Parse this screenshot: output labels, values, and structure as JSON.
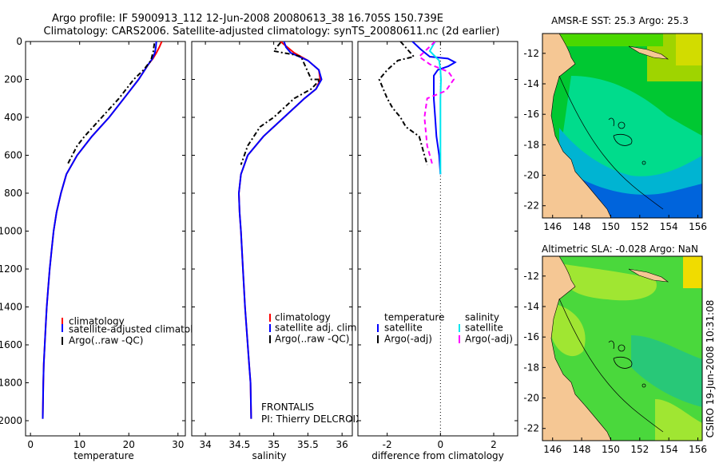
{
  "header": {
    "title_line1": "Argo profile: IF 5900913_112 12-Jun-2008 20080613_38 16.705S 150.739E",
    "title_line2": "Climatology: CARS2006. Satellite-adjusted climatology: synTS_20080611.nc (2d earlier)"
  },
  "side_label": "CSIRO 19-Jun-2008 10:31:08",
  "float_info": {
    "program": "FRONTALIS",
    "pi": "PI: Thierry DELCROIX"
  },
  "colors": {
    "climatology": "#ff0000",
    "satellite": "#0000ff",
    "argo": "#000000",
    "salinity_satellite": "#00e5ee",
    "salinity_argo": "#ff00ff"
  },
  "chart_data": [
    {
      "id": "temperature",
      "type": "line",
      "xlabel": "temperature",
      "ylabel": "",
      "xlim": [
        -1,
        31.5
      ],
      "ylim": [
        2080,
        0
      ],
      "xticks": [
        0,
        10,
        20,
        30
      ],
      "yticks": [
        0,
        200,
        400,
        600,
        800,
        1000,
        1200,
        1400,
        1600,
        1800,
        2000
      ],
      "series": [
        {
          "name": "climatology",
          "color": "#ff0000",
          "dash": "",
          "x": [
            26.7,
            26.2,
            25.6,
            24.9,
            24.0,
            22.0,
            19.0,
            16.0,
            12.5,
            9.5,
            7.3,
            6.2,
            5.3,
            4.7,
            4.3,
            3.9,
            3.6,
            3.3,
            3.1,
            2.9,
            2.7,
            2.6,
            2.5
          ],
          "y": [
            0,
            30,
            60,
            90,
            120,
            200,
            300,
            400,
            500,
            600,
            700,
            800,
            900,
            1000,
            1100,
            1200,
            1300,
            1400,
            1500,
            1600,
            1700,
            1800,
            1990
          ]
        },
        {
          "name": "satellite-adjusted climatology",
          "color": "#0000ff",
          "dash": "",
          "x": [
            25.6,
            25.5,
            25.3,
            24.8,
            24.0,
            22.0,
            19.0,
            16.0,
            12.5,
            9.5,
            7.3,
            6.2,
            5.3,
            4.7,
            4.3,
            3.9,
            3.6,
            3.3,
            3.1,
            2.9,
            2.7,
            2.6,
            2.5
          ],
          "y": [
            0,
            30,
            60,
            90,
            120,
            200,
            300,
            400,
            500,
            600,
            700,
            800,
            900,
            1000,
            1100,
            1200,
            1300,
            1400,
            1500,
            1600,
            1700,
            1800,
            1990
          ]
        },
        {
          "name": "Argo(..raw -QC)",
          "color": "#000000",
          "dash": "6,3,2,3",
          "x": [
            25.2,
            25.0,
            24.5,
            23.0,
            21.0,
            18.0,
            14.5,
            11.0,
            9.5,
            8.5,
            7.5
          ],
          "y": [
            10,
            50,
            100,
            150,
            200,
            300,
            400,
            500,
            550,
            600,
            650
          ]
        }
      ],
      "legend": [
        "climatology",
        "satellite-adjusted climatology",
        "Argo(..raw -QC)"
      ]
    },
    {
      "id": "salinity",
      "type": "line",
      "xlabel": "salinity",
      "ylabel": "",
      "xlim": [
        33.8,
        36.15
      ],
      "ylim": [
        2080,
        0
      ],
      "xticks": [
        34,
        34.5,
        35,
        35.5,
        36
      ],
      "series": [
        {
          "name": "climatology",
          "color": "#ff0000",
          "dash": "",
          "x": [
            35.1,
            35.2,
            35.3,
            35.5,
            35.66,
            35.68,
            35.62,
            35.45,
            35.15,
            34.85,
            34.62,
            34.52,
            34.49,
            34.5,
            34.52,
            34.55,
            34.58,
            34.6,
            34.62,
            34.64,
            34.66,
            34.67
          ],
          "y": [
            0,
            30,
            60,
            100,
            150,
            200,
            250,
            300,
            400,
            500,
            600,
            700,
            800,
            900,
            1000,
            1200,
            1400,
            1500,
            1600,
            1700,
            1800,
            1990
          ]
        },
        {
          "name": "satellite adj. clim.",
          "color": "#0000ff",
          "dash": "",
          "x": [
            35.15,
            35.18,
            35.25,
            35.5,
            35.66,
            35.7,
            35.62,
            35.45,
            35.15,
            34.85,
            34.62,
            34.52,
            34.49,
            34.5,
            34.52,
            34.55,
            34.58,
            34.6,
            34.62,
            34.64,
            34.66,
            34.67
          ],
          "y": [
            0,
            30,
            60,
            100,
            150,
            200,
            250,
            300,
            400,
            500,
            600,
            700,
            800,
            900,
            1000,
            1200,
            1400,
            1500,
            1600,
            1700,
            1800,
            1990
          ]
        },
        {
          "name": "Argo(..raw -QC)",
          "color": "#000000",
          "dash": "6,3,2,3",
          "x": [
            35.1,
            35.0,
            35.15,
            35.3,
            35.4,
            35.45,
            35.55,
            35.68,
            35.55,
            35.3,
            35.0,
            34.8,
            34.62,
            34.52
          ],
          "y": [
            5,
            50,
            60,
            70,
            80,
            120,
            200,
            200,
            250,
            300,
            400,
            450,
            550,
            650
          ]
        }
      ],
      "legend": [
        "climatology",
        "satellite adj. clim.",
        "Argo(..raw -QC)"
      ]
    },
    {
      "id": "difference",
      "type": "line",
      "xlabel": "difference from climatology",
      "ylabel": "",
      "xlim": [
        -3.1,
        2.9
      ],
      "ylim": [
        2080,
        0
      ],
      "xticks": [
        -2,
        0,
        2
      ],
      "zero_line": 0,
      "series": [
        {
          "name": "temperature satellite",
          "color": "#0000ff",
          "dash": "",
          "x": [
            -1.05,
            -0.75,
            -0.4,
            0.28,
            0.55,
            0.3,
            -0.1,
            -0.25,
            -0.25,
            -0.2,
            -0.15,
            -0.05,
            0.0
          ],
          "y": [
            0,
            40,
            80,
            90,
            110,
            130,
            150,
            180,
            300,
            400,
            500,
            600,
            700
          ]
        },
        {
          "name": "temperature Argo(-adj)",
          "color": "#000000",
          "dash": "6,3,2,3",
          "x": [
            -1.5,
            -1.0,
            -1.6,
            -2.0,
            -2.3,
            -2.0,
            -1.8,
            -1.5,
            -1.3,
            -0.8,
            -0.6,
            -0.5
          ],
          "y": [
            0,
            80,
            100,
            150,
            200,
            300,
            350,
            400,
            450,
            500,
            600,
            650
          ]
        },
        {
          "name": "salinity satellite",
          "color": "#00e5ee",
          "dash": "",
          "x": [
            -0.2,
            -0.4,
            -0.05,
            0.0,
            0.02,
            0.0,
            0.0,
            0.0,
            0.0,
            0.0
          ],
          "y": [
            0,
            50,
            100,
            150,
            200,
            300,
            400,
            500,
            600,
            700
          ]
        },
        {
          "name": "salinity Argo(-adj)",
          "color": "#ff00ff",
          "dash": "6,4",
          "x": [
            -0.2,
            -0.8,
            -0.4,
            0.3,
            0.5,
            0.2,
            -0.5,
            -0.6,
            -0.5,
            -0.3
          ],
          "y": [
            0,
            80,
            120,
            160,
            200,
            260,
            300,
            400,
            550,
            650
          ]
        }
      ],
      "legend_temperature": {
        "heading": "temperature",
        "items": [
          "satellite",
          "Argo(-adj)"
        ]
      },
      "legend_salinity": {
        "heading": "salinity",
        "items": [
          "satellite",
          "Argo(-adj)"
        ]
      }
    },
    {
      "id": "sst_map",
      "type": "heatmap",
      "title": "AMSR-E SST: 25.3 Argo: 25.3",
      "xlim": [
        145.3,
        156.3
      ],
      "ylim": [
        -22.8,
        -10.7
      ],
      "xticks": [
        146,
        148,
        150,
        152,
        154,
        156
      ],
      "yticks": [
        -12,
        -14,
        -16,
        -18,
        -20,
        -22
      ],
      "field": "sea surface temperature"
    },
    {
      "id": "sla_map",
      "type": "heatmap",
      "title": "Altimetric SLA: -0.028 Argo: NaN",
      "xlim": [
        145.3,
        156.3
      ],
      "ylim": [
        -22.8,
        -10.7
      ],
      "xticks": [
        146,
        148,
        150,
        152,
        154,
        156
      ],
      "yticks": [
        -12,
        -14,
        -16,
        -18,
        -20,
        -22
      ],
      "field": "sea level anomaly"
    }
  ]
}
